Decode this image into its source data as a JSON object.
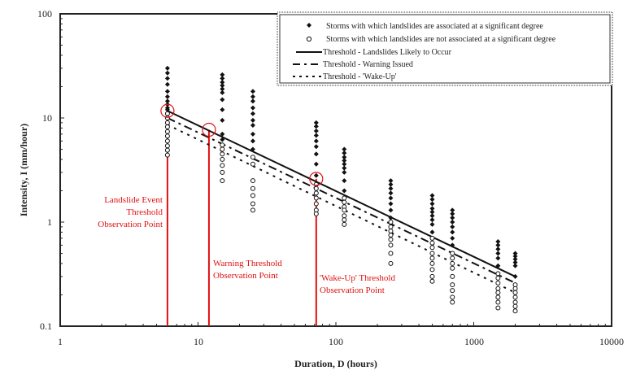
{
  "chart_data": {
    "type": "scatter",
    "title": "",
    "xlabel": "Duration, D (hours)",
    "ylabel": "Intensity, I (mm/hour)",
    "xscale": "log",
    "yscale": "log",
    "xlim": [
      1,
      10000
    ],
    "ylim": [
      0.1,
      100
    ],
    "x_tick_labels": [
      "1",
      "10",
      "100",
      "1000",
      "10000"
    ],
    "y_tick_labels": [
      "0.1",
      "1",
      "10",
      "100"
    ],
    "legend_position": "top-right",
    "colors": {
      "points": "#111111",
      "annotation": "#e01010"
    },
    "series": [
      {
        "name": "Storms with which landslides are associated at a significant degree",
        "marker": "filled-diamond",
        "points": [
          {
            "x": 6,
            "y": [
              30,
              27,
              24,
              21,
              18,
              16,
              14.5,
              13.5,
              12.5,
              12
            ]
          },
          {
            "x": 15,
            "y": [
              26,
              24,
              22,
              20.5,
              19,
              17.5,
              15,
              12,
              9.5,
              7,
              6.2
            ]
          },
          {
            "x": 25,
            "y": [
              18,
              16,
              14.5,
              12.5,
              11,
              9.5,
              8.5,
              7,
              6,
              5
            ]
          },
          {
            "x": 72,
            "y": [
              9,
              8.3,
              7.5,
              6.8,
              6,
              5.3,
              4.5,
              3.6,
              2.8
            ]
          },
          {
            "x": 115,
            "y": [
              5,
              4.6,
              4.2,
              3.9,
              3.6,
              3.3,
              3,
              2.5,
              2
            ]
          },
          {
            "x": 250,
            "y": [
              2.5,
              2.3,
              2.1,
              1.9,
              1.7,
              1.5,
              1.3,
              1.1
            ]
          },
          {
            "x": 500,
            "y": [
              1.8,
              1.65,
              1.5,
              1.35,
              1.25,
              1.15,
              1.05,
              0.95,
              0.8
            ]
          },
          {
            "x": 700,
            "y": [
              1.3,
              1.2,
              1.1,
              1.0,
              0.9,
              0.8,
              0.7,
              0.6
            ]
          },
          {
            "x": 1500,
            "y": [
              0.65,
              0.6,
              0.55,
              0.5,
              0.45,
              0.38
            ]
          },
          {
            "x": 2000,
            "y": [
              0.5,
              0.47,
              0.44,
              0.41,
              0.38,
              0.3
            ]
          }
        ]
      },
      {
        "name": "Storms with which landslides are not associated at a significant degree",
        "marker": "open-circle",
        "points": [
          {
            "x": 6,
            "y": [
              11,
              10,
              9,
              8.2,
              7.4,
              6.7,
              6,
              5.4,
              4.9,
              4.4
            ]
          },
          {
            "x": 15,
            "y": [
              5.5,
              5,
              4.5,
              4,
              3.5,
              3,
              2.5
            ]
          },
          {
            "x": 25,
            "y": [
              4.2,
              3.6,
              2.5,
              2.1,
              1.8,
              1.5,
              1.3
            ]
          },
          {
            "x": 72,
            "y": [
              2.3,
              2.1,
              1.9,
              1.7,
              1.5,
              1.3,
              1.2
            ]
          },
          {
            "x": 115,
            "y": [
              1.7,
              1.55,
              1.4,
              1.3,
              1.15,
              1.05,
              0.95
            ]
          },
          {
            "x": 250,
            "y": [
              1.0,
              0.9,
              0.82,
              0.75,
              0.68,
              0.6,
              0.5,
              0.4
            ]
          },
          {
            "x": 500,
            "y": [
              0.7,
              0.63,
              0.57,
              0.5,
              0.45,
              0.4,
              0.35,
              0.3,
              0.27
            ]
          },
          {
            "x": 700,
            "y": [
              0.5,
              0.45,
              0.4,
              0.36,
              0.3,
              0.25,
              0.22,
              0.19,
              0.17
            ]
          },
          {
            "x": 1500,
            "y": [
              0.32,
              0.29,
              0.26,
              0.23,
              0.21,
              0.19,
              0.17,
              0.15
            ]
          },
          {
            "x": 2000,
            "y": [
              0.25,
              0.23,
              0.21,
              0.19,
              0.17,
              0.155,
              0.14
            ]
          }
        ]
      }
    ],
    "lines": [
      {
        "name": "Threshold - Landslides Likely to Occur",
        "style": "solid",
        "x": [
          6,
          2000
        ],
        "y": [
          11.7,
          0.3
        ]
      },
      {
        "name": "Threshold - Warning Issued",
        "style": "dash-dot",
        "x": [
          6,
          2000
        ],
        "y": [
          10,
          0.26
        ]
      },
      {
        "name": "Threshold - 'Wake-Up'",
        "style": "dotted",
        "x": [
          6,
          2000
        ],
        "y": [
          8.6,
          0.21
        ]
      }
    ],
    "annotations": [
      {
        "x": 6,
        "y": 11.7,
        "text": [
          "Landslide Event",
          "Threshold",
          "Observation Point"
        ]
      },
      {
        "x": 12,
        "y": 7.7,
        "text": [
          "Warning Threshold",
          "Observation Point"
        ]
      },
      {
        "x": 72,
        "y": 2.6,
        "text": [
          "'Wake-Up' Threshold",
          "Observation Point"
        ]
      }
    ]
  }
}
